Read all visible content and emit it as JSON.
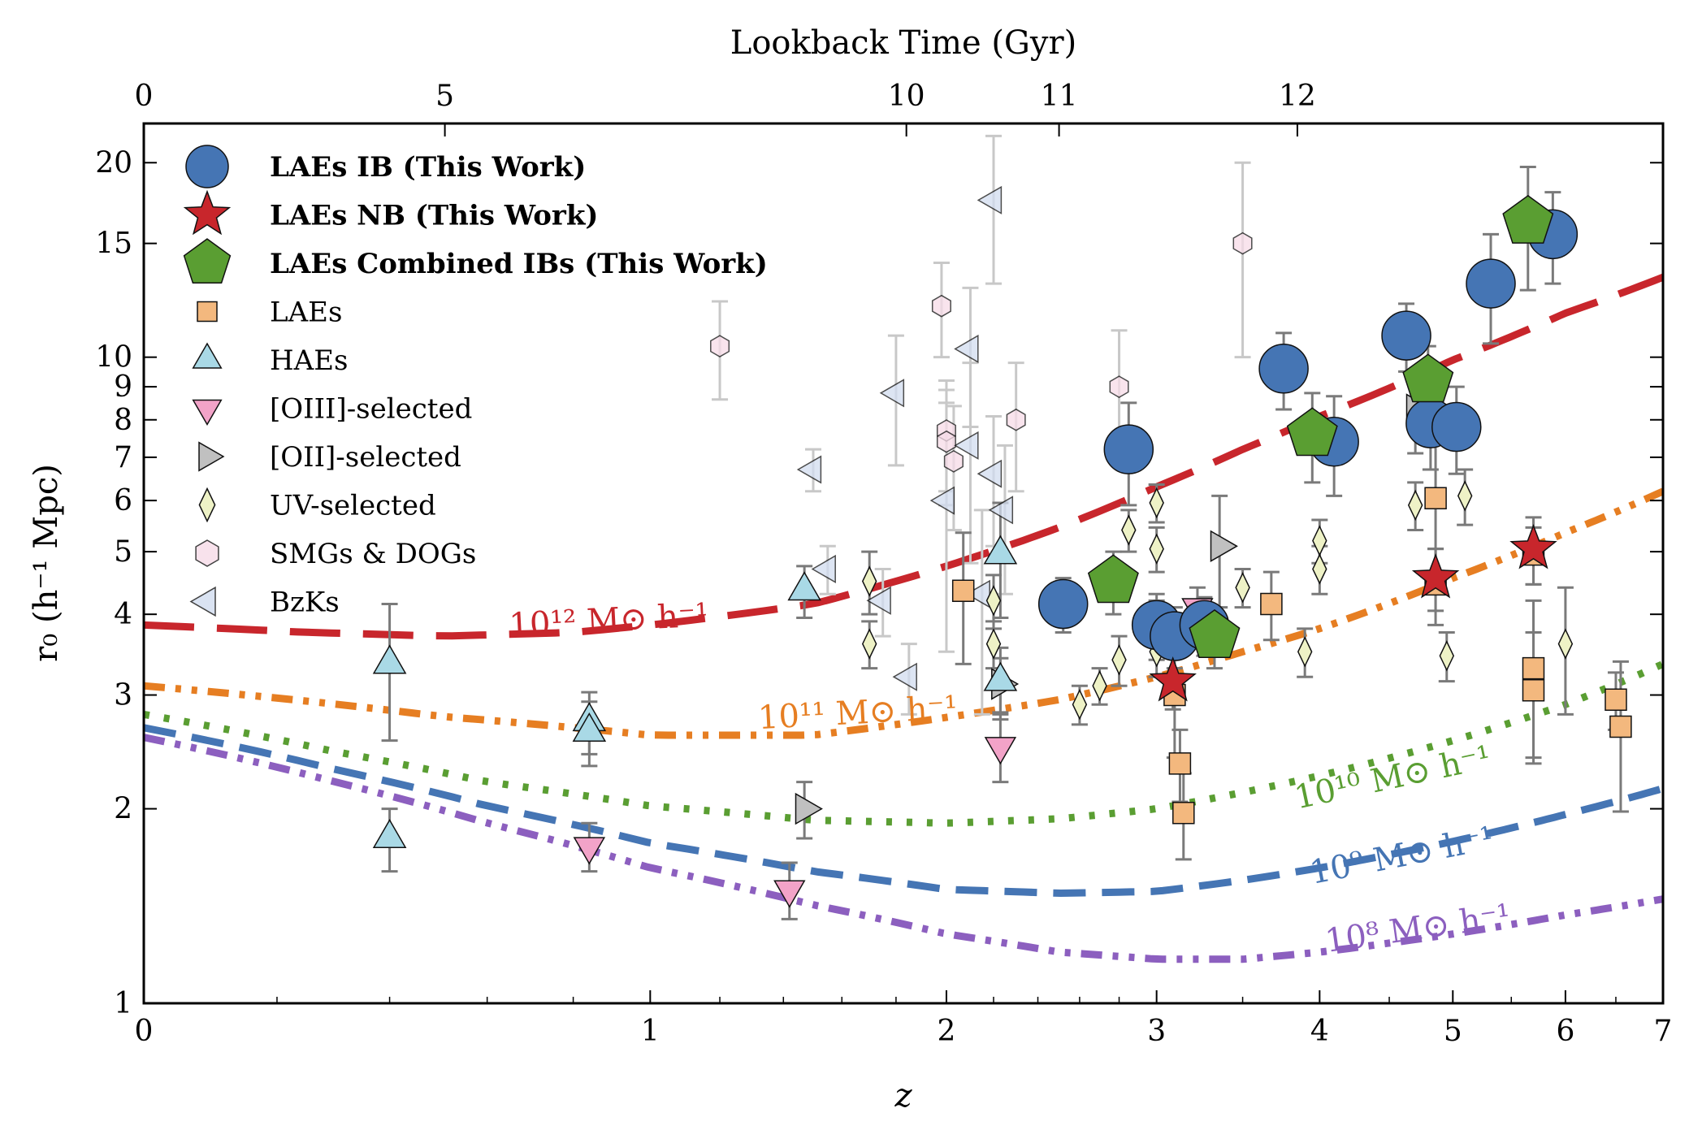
{
  "chart_data": {
    "type": "scatter",
    "xlabel": "z",
    "ylabel": "r₀ (h⁻¹ Mpc)",
    "top_axis_label": "Lookback Time (Gyr)",
    "x_scale": "log(1+z)",
    "y_scale": "log",
    "xlim": [
      0,
      7
    ],
    "ylim": [
      1,
      23
    ],
    "x_ticks": [
      {
        "value": 0,
        "label": "0"
      },
      {
        "value": 1,
        "label": "1"
      },
      {
        "value": 2,
        "label": "2"
      },
      {
        "value": 3,
        "label": "3"
      },
      {
        "value": 4,
        "label": "4"
      },
      {
        "value": 5,
        "label": "5"
      },
      {
        "value": 6,
        "label": "6"
      },
      {
        "value": 7,
        "label": "7"
      }
    ],
    "top_ticks": [
      {
        "z": 0,
        "label": "0"
      },
      {
        "z": 0.51,
        "label": "5"
      },
      {
        "z": 1.84,
        "label": "10"
      },
      {
        "z": 2.5,
        "label": "11"
      },
      {
        "z": 3.85,
        "label": "12"
      }
    ],
    "y_ticks": [
      {
        "value": 1,
        "label": "1"
      },
      {
        "value": 2,
        "label": "2"
      },
      {
        "value": 3,
        "label": "3"
      },
      {
        "value": 4,
        "label": "4"
      },
      {
        "value": 5,
        "label": "5"
      },
      {
        "value": 6,
        "label": "6"
      },
      {
        "value": 7,
        "label": "7"
      },
      {
        "value": 8,
        "label": "8"
      },
      {
        "value": 9,
        "label": "9"
      },
      {
        "value": 10,
        "label": "10"
      },
      {
        "value": 15,
        "label": "15"
      },
      {
        "value": 20,
        "label": "20"
      }
    ],
    "legend": {
      "placement": "upper-left",
      "entries": [
        {
          "label": "LAEs IB (This Work)",
          "marker": "circle",
          "color": "#4575b4",
          "bold": true
        },
        {
          "label": "LAEs NB (This Work)",
          "marker": "star",
          "color": "#c8262c",
          "bold": true
        },
        {
          "label": "LAEs Combined IBs (This Work)",
          "marker": "pentagon",
          "color": "#5a9e32",
          "bold": true
        },
        {
          "label": "LAEs",
          "marker": "square",
          "color": "#f3b87e",
          "bold": false
        },
        {
          "label": "HAEs",
          "marker": "triangle-up",
          "color": "#a9d9e6",
          "bold": false
        },
        {
          "label": "[OIII]-selected",
          "marker": "triangle-down",
          "color": "#f2a3c8",
          "bold": false
        },
        {
          "label": "[OII]-selected",
          "marker": "triangle-right",
          "color": "#c0c0c0",
          "bold": false
        },
        {
          "label": "UV-selected",
          "marker": "thin-diamond",
          "color": "#eef2c6",
          "bold": false
        },
        {
          "label": "SMGs & DOGs",
          "marker": "hexagon",
          "color": "#f7dce8",
          "bold": false
        },
        {
          "label": "BzKs",
          "marker": "triangle-left",
          "color": "#d2ddf0",
          "bold": false
        }
      ]
    },
    "halo_curves": [
      {
        "label": "10¹² M⊙ h⁻¹",
        "color": "#c8262c",
        "style": "dashed-long",
        "x": [
          0,
          0.25,
          0.5,
          0.8,
          1,
          1.5,
          2,
          2.5,
          3,
          3.5,
          4,
          5,
          6,
          7
        ],
        "y": [
          3.85,
          3.75,
          3.7,
          3.75,
          3.85,
          4.15,
          4.75,
          5.45,
          6.3,
          7.2,
          8.1,
          9.9,
          11.7,
          13.3
        ]
      },
      {
        "label": "10¹¹ M⊙ h⁻¹",
        "color": "#e67e22",
        "style": "dash-dot-dot",
        "x": [
          0,
          0.5,
          1,
          1.5,
          2,
          2.5,
          3,
          3.5,
          4,
          5,
          6,
          7
        ],
        "y": [
          3.1,
          2.78,
          2.6,
          2.6,
          2.77,
          2.95,
          3.2,
          3.5,
          3.8,
          4.55,
          5.35,
          6.2
        ]
      },
      {
        "label": "10¹⁰ M⊙ h⁻¹",
        "color": "#5a9e32",
        "style": "dotted",
        "x": [
          0,
          0.3,
          0.6,
          1,
          1.5,
          2,
          2.5,
          3,
          3.5,
          4,
          5,
          6,
          7
        ],
        "y": [
          2.8,
          2.45,
          2.2,
          2.02,
          1.92,
          1.9,
          1.93,
          2.0,
          2.12,
          2.25,
          2.55,
          2.9,
          3.35
        ]
      },
      {
        "label": "10⁹ M⊙ h⁻¹",
        "color": "#4575b4",
        "style": "dashed",
        "x": [
          0,
          0.3,
          0.6,
          1,
          1.5,
          2,
          2.5,
          3,
          3.5,
          4,
          5,
          6,
          7
        ],
        "y": [
          2.67,
          2.3,
          2.02,
          1.77,
          1.6,
          1.5,
          1.48,
          1.49,
          1.55,
          1.62,
          1.78,
          1.96,
          2.15
        ]
      },
      {
        "label": "10⁸ M⊙ h⁻¹",
        "color": "#8c5fbf",
        "style": "dash-dot-dot",
        "x": [
          0,
          0.3,
          0.6,
          1,
          1.5,
          2,
          2.5,
          3,
          3.5,
          4,
          5,
          6,
          7
        ],
        "y": [
          2.58,
          2.2,
          1.9,
          1.62,
          1.42,
          1.28,
          1.2,
          1.17,
          1.17,
          1.2,
          1.28,
          1.37,
          1.45
        ]
      }
    ],
    "series": [
      {
        "name": "LAEs IB (This Work)",
        "marker": "circle",
        "color": "#4575b4",
        "points": [
          {
            "x": 2.52,
            "y": 4.15,
            "yerr": [
              0.4,
              0.4
            ]
          },
          {
            "x": 2.85,
            "y": 7.2,
            "yerr": [
              1.3,
              1.3
            ]
          },
          {
            "x": 3.0,
            "y": 3.85,
            "yerr": [
              0.45,
              0.45
            ]
          },
          {
            "x": 3.1,
            "y": 3.7,
            "yerr": [
              0.4,
              0.4
            ]
          },
          {
            "x": 3.27,
            "y": 3.85,
            "yerr": [
              0.4,
              0.4
            ]
          },
          {
            "x": 3.76,
            "y": 9.6,
            "yerr": [
              1.3,
              1.3
            ]
          },
          {
            "x": 4.1,
            "y": 7.4,
            "yerr": [
              1.3,
              1.3
            ]
          },
          {
            "x": 4.63,
            "y": 10.8,
            "yerr": [
              1.3,
              1.3
            ]
          },
          {
            "x": 4.82,
            "y": 7.9,
            "yerr": [
              1.2,
              1.2
            ]
          },
          {
            "x": 5.03,
            "y": 7.8,
            "yerr": [
              1.2,
              1.2
            ]
          },
          {
            "x": 5.32,
            "y": 13.0,
            "yerr": [
              2.5,
              2.5
            ]
          },
          {
            "x": 5.88,
            "y": 15.5,
            "yerr": [
              2.5,
              2.5
            ]
          }
        ]
      },
      {
        "name": "LAEs NB (This Work)",
        "marker": "star",
        "color": "#c8262c",
        "points": [
          {
            "x": 3.09,
            "y": 3.15,
            "yerr": [
              0.3,
              0.3
            ]
          },
          {
            "x": 4.86,
            "y": 4.55,
            "yerr": [
              0.5,
              0.5
            ]
          },
          {
            "x": 5.7,
            "y": 5.05,
            "yerr": [
              0.6,
              0.6
            ]
          }
        ]
      },
      {
        "name": "LAEs Combined IBs (This Work)",
        "marker": "pentagon",
        "color": "#5a9e32",
        "points": [
          {
            "x": 2.77,
            "y": 4.5,
            "yerr": [
              0.5,
              0.5
            ]
          },
          {
            "x": 3.33,
            "y": 3.7,
            "yerr": [
              0.4,
              0.4
            ]
          },
          {
            "x": 3.95,
            "y": 7.6,
            "yerr": [
              1.2,
              1.2
            ]
          },
          {
            "x": 4.8,
            "y": 9.2,
            "yerr": [
              1.2,
              1.2
            ]
          },
          {
            "x": 5.65,
            "y": 16.2,
            "yerr": [
              3.5,
              3.5
            ]
          }
        ]
      },
      {
        "name": "LAEs",
        "marker": "square",
        "color": "#f3b87e",
        "points": [
          {
            "x": 2.07,
            "y": 4.35,
            "yerr": [
              1.0,
              1.0
            ]
          },
          {
            "x": 3.1,
            "y": 3.0,
            "yerr": [
              0.6,
              0.6
            ]
          },
          {
            "x": 3.13,
            "y": 2.35,
            "yerr": [
              0.3,
              0.3
            ]
          },
          {
            "x": 3.15,
            "y": 1.97,
            "yerr": [
              0.3,
              0.3
            ]
          },
          {
            "x": 3.68,
            "y": 4.15,
            "yerr": [
              0.5,
              0.5
            ]
          },
          {
            "x": 4.86,
            "y": 6.05,
            "yerr": [
              1.5,
              1.5
            ]
          },
          {
            "x": 4.86,
            "y": 4.45,
            "yerr": [
              0.6,
              0.6
            ]
          },
          {
            "x": 5.7,
            "y": 4.95,
            "yerr": [
              0.5,
              0.5
            ]
          },
          {
            "x": 5.7,
            "y": 3.3,
            "yerr": [
              0.9,
              0.9
            ]
          },
          {
            "x": 5.7,
            "y": 3.05,
            "yerr": [
              0.7,
              0.7
            ]
          },
          {
            "x": 6.5,
            "y": 2.95,
            "yerr": [
              0.3,
              0.3
            ]
          },
          {
            "x": 6.55,
            "y": 2.68,
            "yerr": [
              0.7,
              0.7
            ]
          }
        ]
      },
      {
        "name": "HAEs",
        "marker": "triangle-up",
        "color": "#a9d9e6",
        "points": [
          {
            "x": 0.4,
            "y": 3.35,
            "yerr": [
              0.8,
              0.8
            ]
          },
          {
            "x": 0.4,
            "y": 1.8,
            "yerr": [
              0.2,
              0.2
            ]
          },
          {
            "x": 0.84,
            "y": 2.73,
            "yerr": [
              0.3,
              0.3
            ]
          },
          {
            "x": 0.84,
            "y": 2.63,
            "yerr": [
              0.3,
              0.3
            ]
          },
          {
            "x": 1.47,
            "y": 4.35,
            "yerr": [
              0.4,
              0.4
            ]
          },
          {
            "x": 2.23,
            "y": 4.95,
            "yerr": [
              1.0,
              1.0
            ]
          },
          {
            "x": 2.23,
            "y": 3.15,
            "yerr": [
              0.4,
              0.4
            ]
          }
        ]
      },
      {
        "name": "[OIII]-selected",
        "marker": "triangle-down",
        "color": "#f2a3c8",
        "points": [
          {
            "x": 0.84,
            "y": 1.75,
            "yerr": [
              0.15,
              0.15
            ]
          },
          {
            "x": 1.42,
            "y": 1.5,
            "yerr": [
              0.15,
              0.15
            ]
          },
          {
            "x": 2.23,
            "y": 2.5,
            "yerr": [
              0.3,
              0.3
            ]
          },
          {
            "x": 3.23,
            "y": 4.1,
            "yerr": [
              0.3,
              0.3
            ]
          }
        ]
      },
      {
        "name": "[OII]-selected",
        "marker": "triangle-right",
        "color": "#c0c0c0",
        "points": [
          {
            "x": 1.47,
            "y": 2.0,
            "yerr": [
              0.2,
              0.2
            ]
          },
          {
            "x": 2.23,
            "y": 3.12,
            "yerr": [
              0.3,
              0.3
            ]
          },
          {
            "x": 3.36,
            "y": 5.1,
            "yerr": [
              1.0,
              1.0
            ]
          },
          {
            "x": 4.7,
            "y": 8.3,
            "yerr": [
              1.2,
              1.2
            ]
          }
        ]
      },
      {
        "name": "UV-selected",
        "marker": "thin-diamond",
        "color": "#eef2c6",
        "points": [
          {
            "x": 1.7,
            "y": 4.5,
            "yerr": [
              0.5,
              0.5
            ]
          },
          {
            "x": 1.7,
            "y": 3.6,
            "yerr": [
              0.3,
              0.3
            ]
          },
          {
            "x": 2.2,
            "y": 4.2,
            "yerr": [
              0.4,
              0.4
            ]
          },
          {
            "x": 2.2,
            "y": 3.6,
            "yerr": [
              0.3,
              0.3
            ]
          },
          {
            "x": 2.6,
            "y": 2.9,
            "yerr": [
              0.2,
              0.2
            ]
          },
          {
            "x": 2.7,
            "y": 3.1,
            "yerr": [
              0.2,
              0.2
            ]
          },
          {
            "x": 2.8,
            "y": 3.4,
            "yerr": [
              0.3,
              0.3
            ]
          },
          {
            "x": 2.85,
            "y": 5.4,
            "yerr": [
              0.4,
              0.4
            ]
          },
          {
            "x": 3.0,
            "y": 5.95,
            "yerr": [
              0.4,
              0.4
            ]
          },
          {
            "x": 3.0,
            "y": 5.05,
            "yerr": [
              0.4,
              0.4
            ]
          },
          {
            "x": 3.0,
            "y": 3.9,
            "yerr": [
              0.3,
              0.3
            ]
          },
          {
            "x": 3.0,
            "y": 3.5,
            "yerr": [
              0.3,
              0.3
            ]
          },
          {
            "x": 3.5,
            "y": 4.4,
            "yerr": [
              0.3,
              0.3
            ]
          },
          {
            "x": 3.9,
            "y": 3.5,
            "yerr": [
              0.3,
              0.3
            ]
          },
          {
            "x": 4.0,
            "y": 5.2,
            "yerr": [
              0.4,
              0.4
            ]
          },
          {
            "x": 4.0,
            "y": 4.7,
            "yerr": [
              0.4,
              0.4
            ]
          },
          {
            "x": 4.7,
            "y": 5.9,
            "yerr": [
              0.5,
              0.5
            ]
          },
          {
            "x": 4.95,
            "y": 3.45,
            "yerr": [
              0.3,
              0.3
            ]
          },
          {
            "x": 5.1,
            "y": 6.1,
            "yerr": [
              0.6,
              0.6
            ]
          },
          {
            "x": 6.0,
            "y": 3.6,
            "yerr": [
              0.8,
              0.8
            ]
          }
        ]
      },
      {
        "name": "SMGs & DOGs",
        "marker": "hexagon",
        "color": "#f7dce8",
        "points": [
          {
            "x": 1.2,
            "y": 10.4,
            "yerr": [
              1.8,
              1.8
            ]
          },
          {
            "x": 1.98,
            "y": 12.0,
            "yerr": [
              2.0,
              2.0
            ]
          },
          {
            "x": 2.0,
            "y": 7.7,
            "yerr": [
              1.5,
              1.5
            ]
          },
          {
            "x": 2.0,
            "y": 7.4,
            "yerr": [
              1.5,
              1.5
            ]
          },
          {
            "x": 2.03,
            "y": 6.9,
            "yerr": [
              1.5,
              1.5
            ]
          },
          {
            "x": 2.3,
            "y": 8.0,
            "yerr": [
              1.8,
              1.8
            ]
          },
          {
            "x": 2.8,
            "y": 9.0,
            "yerr": [
              2.0,
              2.0
            ]
          },
          {
            "x": 3.5,
            "y": 15.0,
            "yerr": [
              5.0,
              5.0
            ]
          }
        ]
      },
      {
        "name": "BzKs",
        "marker": "triangle-left",
        "color": "#d2ddf0",
        "points": [
          {
            "x": 1.5,
            "y": 6.7,
            "yerr": [
              0.5,
              0.5
            ]
          },
          {
            "x": 1.55,
            "y": 4.7,
            "yerr": [
              0.4,
              0.4
            ]
          },
          {
            "x": 1.75,
            "y": 4.2,
            "yerr": [
              0.5,
              0.5
            ]
          },
          {
            "x": 1.8,
            "y": 8.8,
            "yerr": [
              2.0,
              2.0
            ]
          },
          {
            "x": 1.85,
            "y": 3.2,
            "yerr": [
              0.4,
              0.4
            ]
          },
          {
            "x": 2.0,
            "y": 6.0,
            "yerr": [
              2.5,
              2.5
            ]
          },
          {
            "x": 2.1,
            "y": 10.3,
            "yerr": [
              2.5,
              2.5
            ]
          },
          {
            "x": 2.1,
            "y": 7.3,
            "yerr": [
              2.5,
              2.5
            ]
          },
          {
            "x": 2.15,
            "y": 4.3,
            "yerr": [
              1.5,
              1.5
            ]
          },
          {
            "x": 2.2,
            "y": 17.5,
            "yerr": [
              4.5,
              4.5
            ]
          },
          {
            "x": 2.2,
            "y": 6.6,
            "yerr": [
              1.5,
              1.5
            ]
          },
          {
            "x": 2.25,
            "y": 5.8,
            "yerr": [
              1.5,
              1.5
            ]
          }
        ]
      }
    ]
  }
}
